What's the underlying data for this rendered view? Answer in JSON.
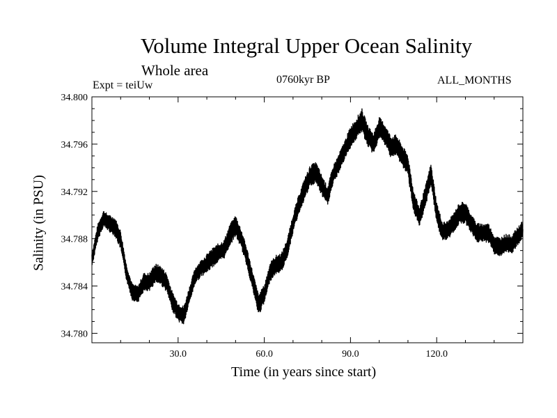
{
  "chart_data": {
    "type": "line",
    "title": "Volume Integral Upper Ocean Salinity",
    "subtitle": "Whole area",
    "experiment": "Expt = teiUw",
    "period": "0760kyr BP",
    "months": "ALL_MONTHS",
    "xlabel": "Time (in years since start)",
    "ylabel": "Salinity (in PSU)",
    "xlim": [
      0,
      150
    ],
    "ylim": [
      34.7792,
      34.8
    ],
    "xticks": [
      30,
      60,
      90,
      120
    ],
    "xtick_labels": [
      "30.0",
      "60.0",
      "90.0",
      "120.0"
    ],
    "yticks": [
      34.78,
      34.784,
      34.788,
      34.792,
      34.796,
      34.8
    ],
    "ytick_labels": [
      "34.780",
      "34.784",
      "34.788",
      "34.792",
      "34.796",
      "34.800"
    ],
    "series": [
      {
        "name": "Salinity",
        "color": "#000000",
        "x": [
          0,
          2,
          4,
          6,
          8,
          10,
          12,
          14,
          16,
          18,
          20,
          22,
          24,
          26,
          28,
          30,
          32,
          34,
          36,
          38,
          40,
          42,
          44,
          46,
          48,
          50,
          52,
          54,
          56,
          58,
          60,
          62,
          64,
          66,
          68,
          70,
          72,
          74,
          76,
          78,
          80,
          82,
          84,
          86,
          88,
          90,
          92,
          94,
          96,
          98,
          100,
          102,
          104,
          106,
          108,
          110,
          112,
          114,
          116,
          118,
          120,
          122,
          124,
          126,
          128,
          130,
          132,
          134,
          136,
          138,
          140,
          142,
          144,
          146,
          148,
          150
        ],
        "mid": [
          34.7862,
          34.7885,
          34.7897,
          34.7893,
          34.789,
          34.7879,
          34.7852,
          34.7835,
          34.7833,
          34.7843,
          34.7843,
          34.7851,
          34.7849,
          34.7843,
          34.7827,
          34.7818,
          34.7815,
          34.7833,
          34.7849,
          34.7855,
          34.7859,
          34.7864,
          34.7868,
          34.7871,
          34.7883,
          34.7891,
          34.788,
          34.7864,
          34.7844,
          34.7824,
          34.7833,
          34.7852,
          34.7858,
          34.786,
          34.7872,
          34.7893,
          34.7909,
          34.7922,
          34.7933,
          34.7936,
          34.7925,
          34.7916,
          34.7934,
          34.7944,
          34.7955,
          34.7966,
          34.7973,
          34.798,
          34.7967,
          34.796,
          34.7974,
          34.7968,
          34.7958,
          34.7959,
          34.795,
          34.7942,
          34.7911,
          34.7898,
          34.7915,
          34.7935,
          34.7902,
          34.7886,
          34.7887,
          34.7894,
          34.7902,
          34.7902,
          34.7893,
          34.7885,
          34.7885,
          34.7885,
          34.7875,
          34.7873,
          34.7876,
          34.7875,
          34.7881,
          34.7888
        ],
        "spread": [
          0.0006,
          0.0007,
          0.0007,
          0.0007,
          0.0008,
          0.0008,
          0.0007,
          0.0007,
          0.0007,
          0.0008,
          0.0008,
          0.0008,
          0.0008,
          0.0008,
          0.0008,
          0.0008,
          0.0008,
          0.0007,
          0.0007,
          0.0007,
          0.0008,
          0.0008,
          0.0008,
          0.0008,
          0.0009,
          0.0009,
          0.0008,
          0.0008,
          0.0008,
          0.0009,
          0.0008,
          0.0008,
          0.0008,
          0.0008,
          0.0008,
          0.0008,
          0.0008,
          0.0009,
          0.0009,
          0.0009,
          0.0009,
          0.0008,
          0.0008,
          0.0008,
          0.0008,
          0.0009,
          0.0009,
          0.001,
          0.0009,
          0.0009,
          0.0009,
          0.0009,
          0.0009,
          0.0009,
          0.0009,
          0.0009,
          0.0009,
          0.0009,
          0.0009,
          0.0009,
          0.0009,
          0.0008,
          0.0008,
          0.0008,
          0.0009,
          0.0009,
          0.0008,
          0.0008,
          0.0008,
          0.0008,
          0.0008,
          0.0008,
          0.0008,
          0.0008,
          0.0008,
          0.0008
        ]
      }
    ]
  }
}
